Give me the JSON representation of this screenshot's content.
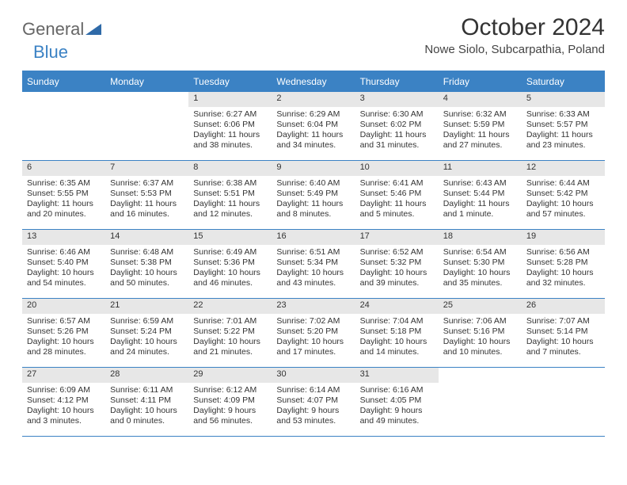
{
  "brand": {
    "part1": "General",
    "part2": "Blue"
  },
  "title": "October 2024",
  "location": "Nowe Siolo, Subcarpathia, Poland",
  "colors": {
    "accent": "#3b82c4",
    "date_bar_bg": "#e7e7e7",
    "text": "#333333",
    "background": "#ffffff"
  },
  "day_labels": [
    "Sunday",
    "Monday",
    "Tuesday",
    "Wednesday",
    "Thursday",
    "Friday",
    "Saturday"
  ],
  "weeks": [
    [
      null,
      null,
      {
        "date": "1",
        "sunrise": "Sunrise: 6:27 AM",
        "sunset": "Sunset: 6:06 PM",
        "daylight": "Daylight: 11 hours and 38 minutes."
      },
      {
        "date": "2",
        "sunrise": "Sunrise: 6:29 AM",
        "sunset": "Sunset: 6:04 PM",
        "daylight": "Daylight: 11 hours and 34 minutes."
      },
      {
        "date": "3",
        "sunrise": "Sunrise: 6:30 AM",
        "sunset": "Sunset: 6:02 PM",
        "daylight": "Daylight: 11 hours and 31 minutes."
      },
      {
        "date": "4",
        "sunrise": "Sunrise: 6:32 AM",
        "sunset": "Sunset: 5:59 PM",
        "daylight": "Daylight: 11 hours and 27 minutes."
      },
      {
        "date": "5",
        "sunrise": "Sunrise: 6:33 AM",
        "sunset": "Sunset: 5:57 PM",
        "daylight": "Daylight: 11 hours and 23 minutes."
      }
    ],
    [
      {
        "date": "6",
        "sunrise": "Sunrise: 6:35 AM",
        "sunset": "Sunset: 5:55 PM",
        "daylight": "Daylight: 11 hours and 20 minutes."
      },
      {
        "date": "7",
        "sunrise": "Sunrise: 6:37 AM",
        "sunset": "Sunset: 5:53 PM",
        "daylight": "Daylight: 11 hours and 16 minutes."
      },
      {
        "date": "8",
        "sunrise": "Sunrise: 6:38 AM",
        "sunset": "Sunset: 5:51 PM",
        "daylight": "Daylight: 11 hours and 12 minutes."
      },
      {
        "date": "9",
        "sunrise": "Sunrise: 6:40 AM",
        "sunset": "Sunset: 5:49 PM",
        "daylight": "Daylight: 11 hours and 8 minutes."
      },
      {
        "date": "10",
        "sunrise": "Sunrise: 6:41 AM",
        "sunset": "Sunset: 5:46 PM",
        "daylight": "Daylight: 11 hours and 5 minutes."
      },
      {
        "date": "11",
        "sunrise": "Sunrise: 6:43 AM",
        "sunset": "Sunset: 5:44 PM",
        "daylight": "Daylight: 11 hours and 1 minute."
      },
      {
        "date": "12",
        "sunrise": "Sunrise: 6:44 AM",
        "sunset": "Sunset: 5:42 PM",
        "daylight": "Daylight: 10 hours and 57 minutes."
      }
    ],
    [
      {
        "date": "13",
        "sunrise": "Sunrise: 6:46 AM",
        "sunset": "Sunset: 5:40 PM",
        "daylight": "Daylight: 10 hours and 54 minutes."
      },
      {
        "date": "14",
        "sunrise": "Sunrise: 6:48 AM",
        "sunset": "Sunset: 5:38 PM",
        "daylight": "Daylight: 10 hours and 50 minutes."
      },
      {
        "date": "15",
        "sunrise": "Sunrise: 6:49 AM",
        "sunset": "Sunset: 5:36 PM",
        "daylight": "Daylight: 10 hours and 46 minutes."
      },
      {
        "date": "16",
        "sunrise": "Sunrise: 6:51 AM",
        "sunset": "Sunset: 5:34 PM",
        "daylight": "Daylight: 10 hours and 43 minutes."
      },
      {
        "date": "17",
        "sunrise": "Sunrise: 6:52 AM",
        "sunset": "Sunset: 5:32 PM",
        "daylight": "Daylight: 10 hours and 39 minutes."
      },
      {
        "date": "18",
        "sunrise": "Sunrise: 6:54 AM",
        "sunset": "Sunset: 5:30 PM",
        "daylight": "Daylight: 10 hours and 35 minutes."
      },
      {
        "date": "19",
        "sunrise": "Sunrise: 6:56 AM",
        "sunset": "Sunset: 5:28 PM",
        "daylight": "Daylight: 10 hours and 32 minutes."
      }
    ],
    [
      {
        "date": "20",
        "sunrise": "Sunrise: 6:57 AM",
        "sunset": "Sunset: 5:26 PM",
        "daylight": "Daylight: 10 hours and 28 minutes."
      },
      {
        "date": "21",
        "sunrise": "Sunrise: 6:59 AM",
        "sunset": "Sunset: 5:24 PM",
        "daylight": "Daylight: 10 hours and 24 minutes."
      },
      {
        "date": "22",
        "sunrise": "Sunrise: 7:01 AM",
        "sunset": "Sunset: 5:22 PM",
        "daylight": "Daylight: 10 hours and 21 minutes."
      },
      {
        "date": "23",
        "sunrise": "Sunrise: 7:02 AM",
        "sunset": "Sunset: 5:20 PM",
        "daylight": "Daylight: 10 hours and 17 minutes."
      },
      {
        "date": "24",
        "sunrise": "Sunrise: 7:04 AM",
        "sunset": "Sunset: 5:18 PM",
        "daylight": "Daylight: 10 hours and 14 minutes."
      },
      {
        "date": "25",
        "sunrise": "Sunrise: 7:06 AM",
        "sunset": "Sunset: 5:16 PM",
        "daylight": "Daylight: 10 hours and 10 minutes."
      },
      {
        "date": "26",
        "sunrise": "Sunrise: 7:07 AM",
        "sunset": "Sunset: 5:14 PM",
        "daylight": "Daylight: 10 hours and 7 minutes."
      }
    ],
    [
      {
        "date": "27",
        "sunrise": "Sunrise: 6:09 AM",
        "sunset": "Sunset: 4:12 PM",
        "daylight": "Daylight: 10 hours and 3 minutes."
      },
      {
        "date": "28",
        "sunrise": "Sunrise: 6:11 AM",
        "sunset": "Sunset: 4:11 PM",
        "daylight": "Daylight: 10 hours and 0 minutes."
      },
      {
        "date": "29",
        "sunrise": "Sunrise: 6:12 AM",
        "sunset": "Sunset: 4:09 PM",
        "daylight": "Daylight: 9 hours and 56 minutes."
      },
      {
        "date": "30",
        "sunrise": "Sunrise: 6:14 AM",
        "sunset": "Sunset: 4:07 PM",
        "daylight": "Daylight: 9 hours and 53 minutes."
      },
      {
        "date": "31",
        "sunrise": "Sunrise: 6:16 AM",
        "sunset": "Sunset: 4:05 PM",
        "daylight": "Daylight: 9 hours and 49 minutes."
      },
      null,
      null
    ]
  ]
}
